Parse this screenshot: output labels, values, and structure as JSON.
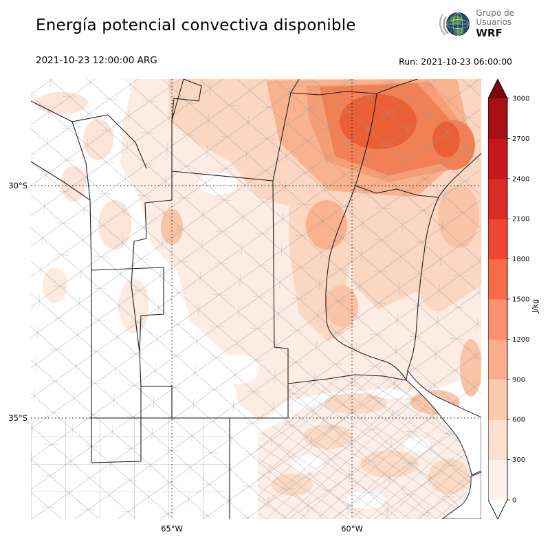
{
  "header": {
    "title": "Energía potencial convectiva disponible",
    "logo": {
      "line1": "Grupo de",
      "line2": "Usuarios",
      "line3": "WRF"
    }
  },
  "subheader": {
    "valid_time": "2021-10-23 12:00:00 ARG",
    "run_label": "Run: 2021-10-23 06:00:00"
  },
  "map": {
    "y_ticks": [
      "30°S",
      "35°S"
    ],
    "x_ticks": [
      "65°W",
      "60°W"
    ]
  },
  "colorbar": {
    "unit": "J/kg",
    "tick_labels": [
      "0",
      "300",
      "600",
      "900",
      "1200",
      "1500",
      "1800",
      "2100",
      "2400",
      "2700",
      "3000"
    ],
    "segment_colors_bottom_to_top": [
      "#fff1ea",
      "#fde0cf",
      "#fcc8ae",
      "#fcac8c",
      "#fb8f6e",
      "#f96a4b",
      "#ee4633",
      "#da2a24",
      "#c5171c",
      "#a50f15"
    ],
    "under_color": "#ffffff",
    "over_color": "#7a0510"
  }
}
